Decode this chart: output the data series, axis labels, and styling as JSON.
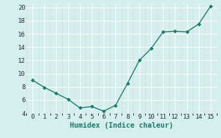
{
  "x": [
    0,
    1,
    2,
    3,
    4,
    5,
    6,
    7,
    8,
    9,
    10,
    11,
    12,
    13,
    14,
    15
  ],
  "y": [
    9.0,
    7.9,
    7.0,
    6.1,
    4.8,
    5.0,
    4.3,
    5.2,
    8.5,
    12.0,
    13.8,
    16.3,
    16.4,
    16.3,
    17.5,
    20.2
  ],
  "xlabel": "Humidex (Indice chaleur)",
  "xlim": [
    -0.5,
    15.5
  ],
  "ylim": [
    4,
    20.5
  ],
  "yticks": [
    4,
    6,
    8,
    10,
    12,
    14,
    16,
    18,
    20
  ],
  "xticks": [
    0,
    1,
    2,
    3,
    4,
    5,
    6,
    7,
    8,
    9,
    10,
    11,
    12,
    13,
    14,
    15
  ],
  "line_color": "#1a7a6e",
  "marker": "D",
  "marker_size": 2.5,
  "background_color": "#d5eeee",
  "grid_color": "#ffffff",
  "grid_minor_color": "#e8f8f8",
  "tick_label_fontsize": 6.5,
  "xlabel_fontsize": 7.5
}
